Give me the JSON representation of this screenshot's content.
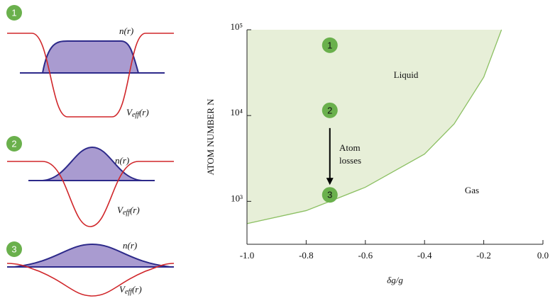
{
  "diagrams": [
    {
      "label": "1",
      "density_label": "n(r)",
      "potential_label": {
        "symbol": "V",
        "subscript": "eff",
        "arg": "(r)"
      }
    },
    {
      "label": "2",
      "density_label": "n(r)",
      "potential_label": {
        "symbol": "V",
        "subscript": "eff",
        "arg": "(r)"
      }
    },
    {
      "label": "3",
      "density_label": "n(r)",
      "potential_label": {
        "symbol": "V",
        "subscript": "eff",
        "arg": "(r)"
      }
    }
  ],
  "chart_data": {
    "type": "area",
    "x_label": "δg/g",
    "y_label": "ATOM NUMBER N",
    "xlim": [
      -1.0,
      0.0
    ],
    "xticks": [
      {
        "value": -1.0,
        "label": "-1.0"
      },
      {
        "value": -0.8,
        "label": "-0.8"
      },
      {
        "value": -0.6,
        "label": "-0.6"
      },
      {
        "value": -0.4,
        "label": "-0.4"
      },
      {
        "value": -0.2,
        "label": "-0.2"
      },
      {
        "value": 0.0,
        "label": "0.0"
      }
    ],
    "ylim": [
      316,
      100000
    ],
    "ylog": true,
    "yticks": [
      {
        "value": 1000,
        "label": "10³"
      },
      {
        "value": 10000,
        "label": "10⁴"
      },
      {
        "value": 100000,
        "label": "10⁵"
      }
    ],
    "line_color": "#8cc063",
    "fill_color": "#e7efd8",
    "x": [
      -1.0,
      -0.8,
      -0.72,
      -0.6,
      -0.4,
      -0.3,
      -0.2,
      -0.14
    ],
    "values": [
      550,
      780,
      1000,
      1460,
      3560,
      8000,
      28000,
      100000
    ],
    "points": {
      "x": [
        -0.72,
        -0.72,
        -0.72
      ],
      "values": [
        66000,
        11500,
        1190
      ],
      "labels": [
        "1",
        "2",
        "3"
      ],
      "color": "#6ab04c"
    },
    "annotations": [
      "Liquid",
      "Gas",
      "Atom",
      "losses"
    ]
  }
}
